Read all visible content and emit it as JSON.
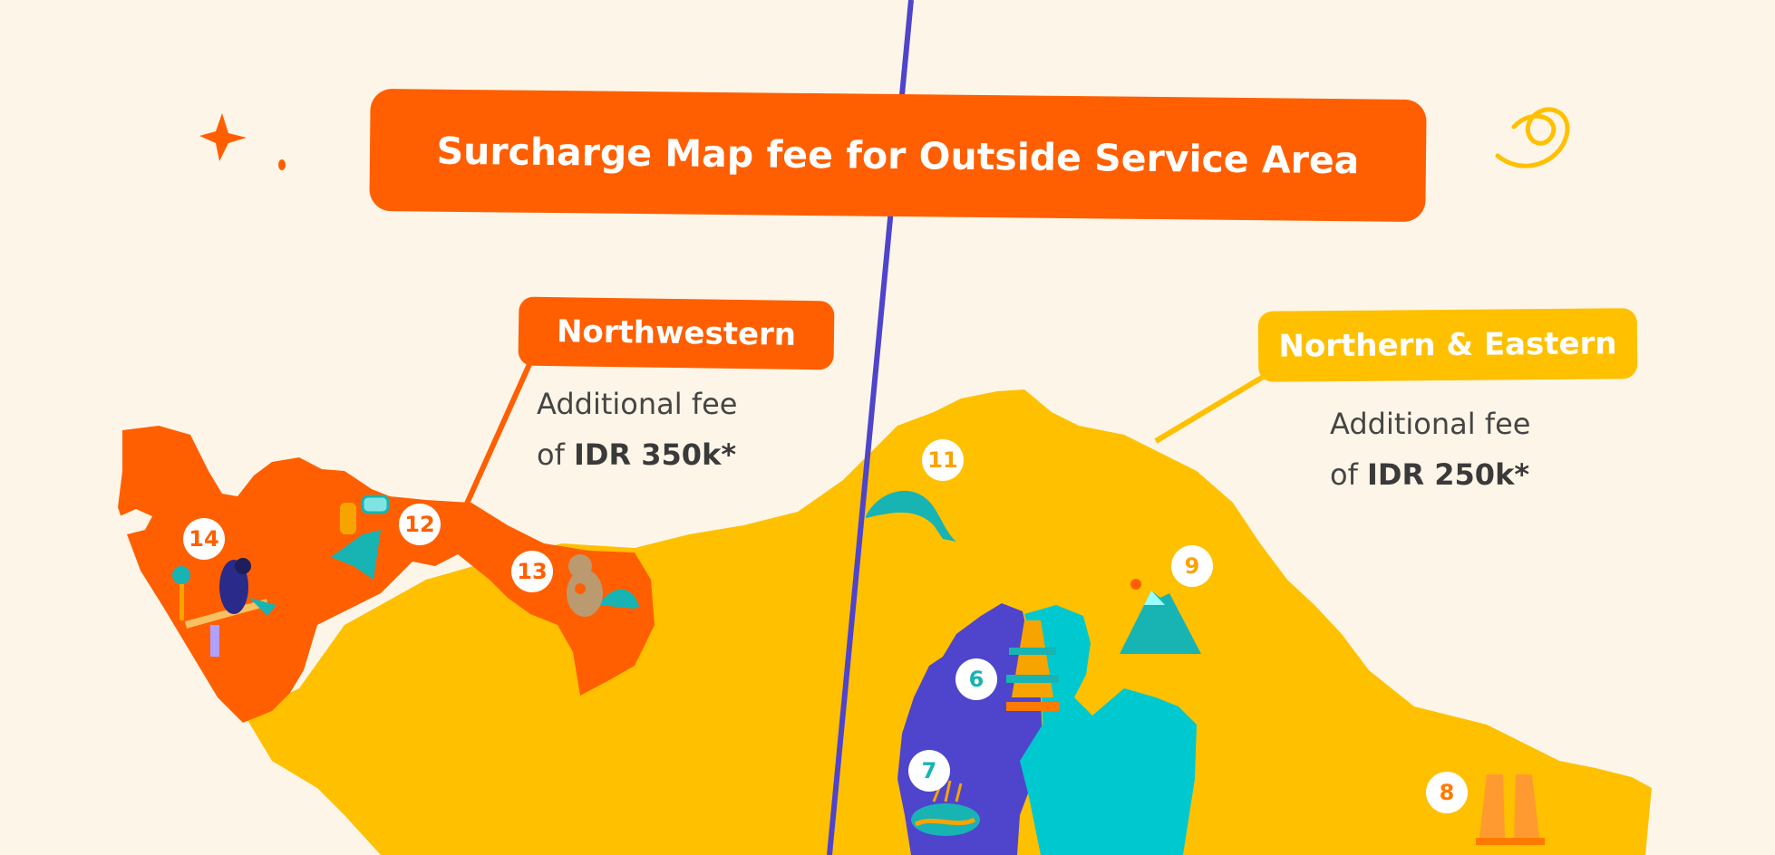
{
  "title": "Surcharge Map fee for Outside Service Area",
  "regions": [
    {
      "name": "Northwestern",
      "fee_prefix": "Additional fee",
      "fee_of": "of",
      "fee_amount": "IDR 350k*",
      "color": "#ff5f00"
    },
    {
      "name": "Northern & Eastern",
      "fee_prefix": "Additional fee",
      "fee_of": "of",
      "fee_amount": "IDR 250k*",
      "color": "#ffc000"
    }
  ],
  "markers": [
    {
      "label": "14",
      "icon": "bird-icon",
      "color": "#ff5f00"
    },
    {
      "label": "12",
      "icon": "diving-gear-icon",
      "color": "#ff5f00"
    },
    {
      "label": "13",
      "icon": "monkey-icon",
      "color": "#ff5f00"
    },
    {
      "label": "11",
      "icon": "dolphin-icon",
      "color": "#f7a400"
    },
    {
      "label": "9",
      "icon": "mountain-icon",
      "color": "#f7a400"
    },
    {
      "label": "6",
      "icon": "temple-icon",
      "color": "#18b3b3"
    },
    {
      "label": "7",
      "icon": "rice-terrace-icon",
      "color": "#18b3b3"
    },
    {
      "label": "8",
      "icon": "gate-icon",
      "color": "#ff7a00"
    }
  ],
  "colors": {
    "background": "#fdf6e8",
    "orange": "#ff5f00",
    "yellow": "#ffc000",
    "purple": "#4f44cc",
    "teal": "#00c8cf",
    "text": "#454545"
  }
}
